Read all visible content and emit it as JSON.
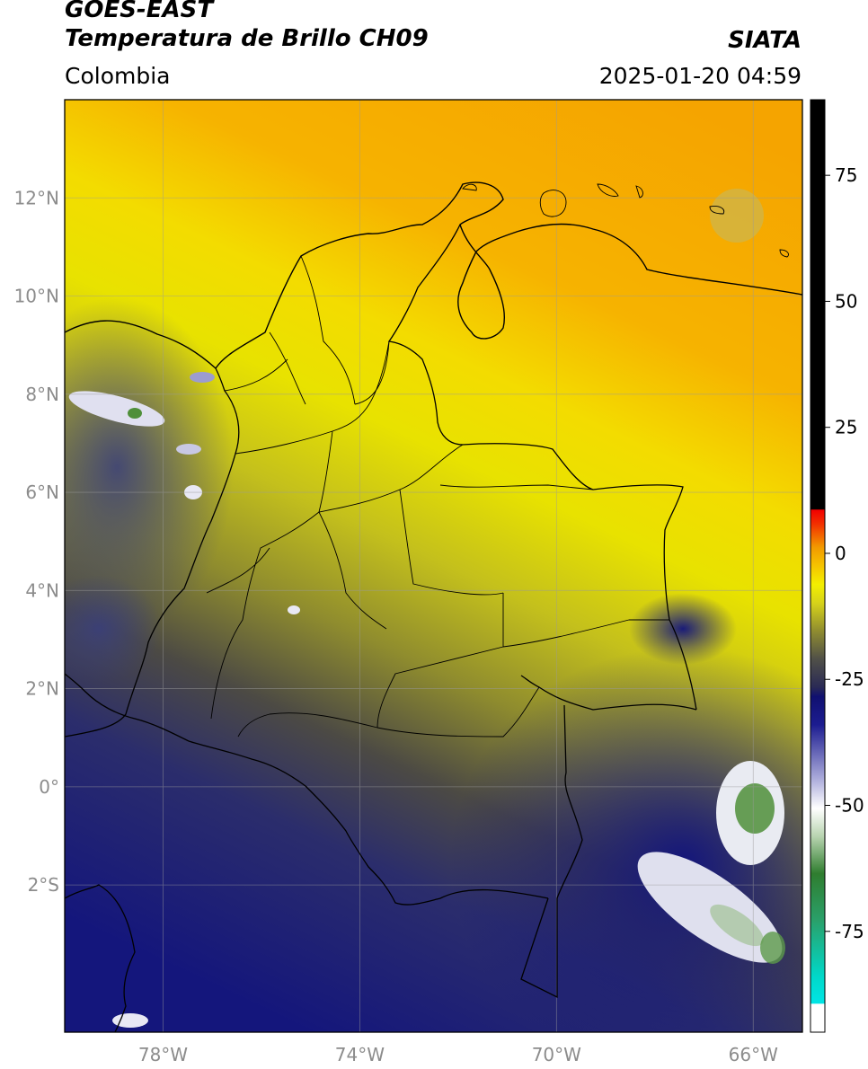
{
  "header": {
    "satellite": "GOES-EAST",
    "product": "Temperatura de Brillo CH09",
    "org": "SIATA",
    "region": "Colombia",
    "datetime": "2025-01-20 04:59"
  },
  "map": {
    "lon_range": [
      -80,
      -65
    ],
    "lat_range": [
      -5,
      14
    ],
    "lon_ticks": [
      {
        "value": -78,
        "label": "78°W"
      },
      {
        "value": -74,
        "label": "74°W"
      },
      {
        "value": -70,
        "label": "70°W"
      },
      {
        "value": -66,
        "label": "66°W"
      }
    ],
    "lat_ticks": [
      {
        "value": 12,
        "label": "12°N"
      },
      {
        "value": 10,
        "label": "10°N"
      },
      {
        "value": 8,
        "label": "8°N"
      },
      {
        "value": 6,
        "label": "6°N"
      },
      {
        "value": 4,
        "label": "4°N"
      },
      {
        "value": 2,
        "label": "2°N"
      },
      {
        "value": 0,
        "label": "0°"
      },
      {
        "value": -2,
        "label": "2°S"
      }
    ],
    "grid": true,
    "colors": {
      "warm": "#f5a500",
      "mid": "#f2ee00",
      "olive": "#9c9a2a",
      "cold": "#1c1f7a",
      "deep": "#10127a",
      "cloud": "#e8e8f4",
      "cloud_core": "#4f8f3a"
    }
  },
  "colorbar": {
    "min": -95,
    "max": 90,
    "ticks": [
      {
        "value": 75,
        "label": "75"
      },
      {
        "value": 50,
        "label": "50"
      },
      {
        "value": 25,
        "label": "25"
      },
      {
        "value": 0,
        "label": "0"
      },
      {
        "value": -25,
        "label": "-25"
      },
      {
        "value": -50,
        "label": "-50"
      },
      {
        "value": -75,
        "label": "-75"
      }
    ]
  }
}
